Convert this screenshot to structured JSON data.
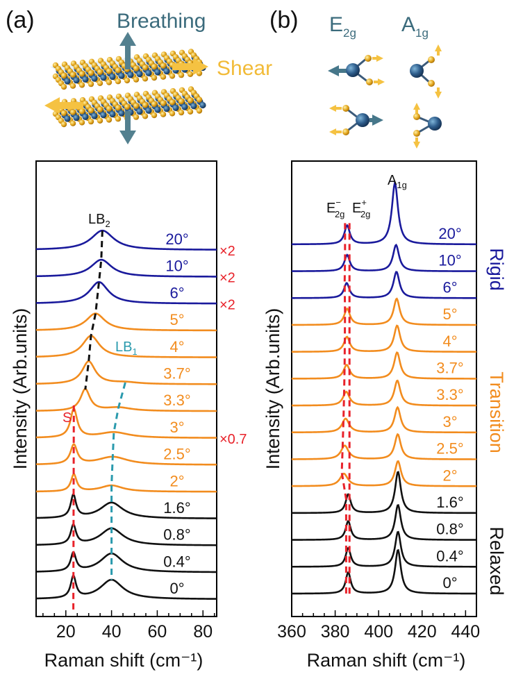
{
  "panels": {
    "a": {
      "letter": "(a)",
      "breathing": "Breathing",
      "shear": "Shear"
    },
    "b": {
      "letter": "(b)",
      "mode1": {
        "base": "E",
        "sub": "2g"
      },
      "mode2": {
        "base": "A",
        "sub": "1g"
      }
    }
  },
  "colors": {
    "rigid": "#1a1a9c",
    "transition": "#f28c1e",
    "relaxed": "#111111",
    "red": "#e8222a",
    "teal": "#2a9aad",
    "arrow_teal": "#46778a",
    "gold": "#f5c242"
  },
  "chart_data": [
    {
      "type": "line",
      "panel": "a",
      "xlabel": "Raman shift (cm⁻¹)",
      "ylabel": "Intensity (Arb.units)",
      "xlim": [
        7,
        86
      ],
      "xticks": [
        20,
        40,
        60,
        80
      ],
      "series": [
        {
          "name": "20°",
          "group": "rigid",
          "multiplier": "×2",
          "peaks": [
            {
              "center": 36,
              "amp": 34,
              "width": 6
            }
          ]
        },
        {
          "name": "10°",
          "group": "rigid",
          "multiplier": "×2",
          "peaks": [
            {
              "center": 35.5,
              "amp": 30,
              "width": 5.5
            }
          ]
        },
        {
          "name": "6°",
          "group": "rigid",
          "multiplier": "×2",
          "peaks": [
            {
              "center": 34.5,
              "amp": 38,
              "width": 5
            }
          ]
        },
        {
          "name": "5°",
          "group": "transition",
          "peaks": [
            {
              "center": 33,
              "amp": 30,
              "width": 5
            }
          ]
        },
        {
          "name": "4°",
          "group": "transition",
          "peaks": [
            {
              "center": 31,
              "amp": 38,
              "width": 4.5
            }
          ]
        },
        {
          "name": "3.7°",
          "group": "transition",
          "peaks": [
            {
              "center": 30,
              "amp": 40,
              "width": 3.5
            },
            {
              "center": 46,
              "amp": 3,
              "width": 7
            }
          ]
        },
        {
          "name": "3.3°",
          "group": "transition",
          "peaks": [
            {
              "center": 28.5,
              "amp": 38,
              "width": 2.5
            },
            {
              "center": 43,
              "amp": 6,
              "width": 7
            }
          ]
        },
        {
          "name": "3°",
          "group": "transition",
          "multiplier": "×0.7",
          "peaks": [
            {
              "center": 23.5,
              "amp": 50,
              "width": 1.8
            },
            {
              "center": 41,
              "amp": 10,
              "width": 8
            }
          ]
        },
        {
          "name": "2.5°",
          "group": "transition",
          "peaks": [
            {
              "center": 23.5,
              "amp": 34,
              "width": 1.8
            },
            {
              "center": 40.5,
              "amp": 14,
              "width": 8
            }
          ]
        },
        {
          "name": "2°",
          "group": "transition",
          "peaks": [
            {
              "center": 23.5,
              "amp": 30,
              "width": 1.5
            },
            {
              "center": 40,
              "amp": 11,
              "width": 6
            }
          ]
        },
        {
          "name": "1.6°",
          "group": "relaxed",
          "peaks": [
            {
              "center": 23.3,
              "amp": 40,
              "width": 1.4
            },
            {
              "center": 40,
              "amp": 28,
              "width": 6
            }
          ]
        },
        {
          "name": "0.8°",
          "group": "relaxed",
          "peaks": [
            {
              "center": 23.3,
              "amp": 34,
              "width": 1.4
            },
            {
              "center": 40,
              "amp": 30,
              "width": 6
            }
          ]
        },
        {
          "name": "0.4°",
          "group": "relaxed",
          "peaks": [
            {
              "center": 23.3,
              "amp": 32,
              "width": 1.4
            },
            {
              "center": 40,
              "amp": 33,
              "width": 6
            }
          ]
        },
        {
          "name": "0°",
          "group": "relaxed",
          "peaks": [
            {
              "center": 23.3,
              "amp": 38,
              "width": 1.4
            },
            {
              "center": 40,
              "amp": 34,
              "width": 6
            }
          ]
        }
      ],
      "annotations": {
        "lb2": {
          "base": "LB",
          "sub": "2"
        },
        "lb1": {
          "base": "LB",
          "sub": "1"
        },
        "s": "S"
      }
    },
    {
      "type": "line",
      "panel": "b",
      "xlabel": "Raman shift (cm⁻¹)",
      "ylabel": "Intensity (Arb.units)",
      "xlim": [
        360,
        445
      ],
      "xticks": [
        360,
        380,
        400,
        420,
        440
      ],
      "series": [
        {
          "name": "20°",
          "group": "rigid",
          "peaks": [
            {
              "center": 385.5,
              "amp": 30,
              "width": 1.5
            },
            {
              "center": 407.5,
              "amp": 98,
              "width": 1.7
            }
          ]
        },
        {
          "name": "10°",
          "group": "rigid",
          "peaks": [
            {
              "center": 385.5,
              "amp": 26,
              "width": 1.5
            },
            {
              "center": 408,
              "amp": 42,
              "width": 1.7
            }
          ]
        },
        {
          "name": "6°",
          "group": "rigid",
          "peaks": [
            {
              "center": 385.3,
              "amp": 24,
              "width": 1.5
            },
            {
              "center": 408.2,
              "amp": 42,
              "width": 1.7
            }
          ]
        },
        {
          "name": "5°",
          "group": "transition",
          "peaks": [
            {
              "center": 385.5,
              "amp": 26,
              "width": 1.6
            },
            {
              "center": 408.3,
              "amp": 42,
              "width": 1.7
            }
          ]
        },
        {
          "name": "4°",
          "group": "transition",
          "peaks": [
            {
              "center": 385.4,
              "amp": 24,
              "width": 1.6
            },
            {
              "center": 408.5,
              "amp": 42,
              "width": 1.7
            }
          ]
        },
        {
          "name": "3.7°",
          "group": "transition",
          "peaks": [
            {
              "center": 385.3,
              "amp": 22,
              "width": 1.7
            },
            {
              "center": 408.5,
              "amp": 42,
              "width": 1.7
            }
          ]
        },
        {
          "name": "3.3°",
          "group": "transition",
          "peaks": [
            {
              "center": 385.1,
              "amp": 22,
              "width": 1.8
            },
            {
              "center": 408.6,
              "amp": 40,
              "width": 1.7
            }
          ]
        },
        {
          "name": "3°",
          "group": "transition",
          "peaks": [
            {
              "center": 384.8,
              "amp": 22,
              "width": 2.0
            },
            {
              "center": 408.7,
              "amp": 40,
              "width": 1.7
            }
          ]
        },
        {
          "name": "2.5°",
          "group": "transition",
          "peaks": [
            {
              "center": 384.4,
              "amp": 22,
              "width": 2.1
            },
            {
              "center": 408.8,
              "amp": 40,
              "width": 1.7
            }
          ]
        },
        {
          "name": "2°",
          "group": "transition",
          "peaks": [
            {
              "center": 384.0,
              "amp": 20,
              "width": 2.2
            },
            {
              "center": 408.9,
              "amp": 40,
              "width": 1.7
            }
          ]
        },
        {
          "name": "1.6°",
          "group": "relaxed",
          "peaks": [
            {
              "center": 386.0,
              "amp": 30,
              "width": 1.4
            },
            {
              "center": 408.9,
              "amp": 66,
              "width": 1.6
            }
          ]
        },
        {
          "name": "0.8°",
          "group": "relaxed",
          "peaks": [
            {
              "center": 386.0,
              "amp": 30,
              "width": 1.4
            },
            {
              "center": 408.9,
              "amp": 56,
              "width": 1.6
            }
          ]
        },
        {
          "name": "0.4°",
          "group": "relaxed",
          "peaks": [
            {
              "center": 386.0,
              "amp": 30,
              "width": 1.4
            },
            {
              "center": 408.9,
              "amp": 56,
              "width": 1.6
            }
          ]
        },
        {
          "name": "0°",
          "group": "relaxed",
          "peaks": [
            {
              "center": 386.0,
              "amp": 34,
              "width": 1.4
            },
            {
              "center": 408.9,
              "amp": 70,
              "width": 1.6
            }
          ]
        }
      ],
      "annotations": {
        "a1g": {
          "base": "A",
          "sub": "1g"
        },
        "e2g_minus": {
          "base": "E",
          "sub": "2g",
          "sup": "−"
        },
        "e2g_plus": {
          "base": "E",
          "sub": "2g",
          "sup": "+"
        }
      },
      "group_labels": {
        "rigid": "Rigid",
        "transition": "Transition",
        "relaxed": "Relaxed"
      }
    }
  ]
}
